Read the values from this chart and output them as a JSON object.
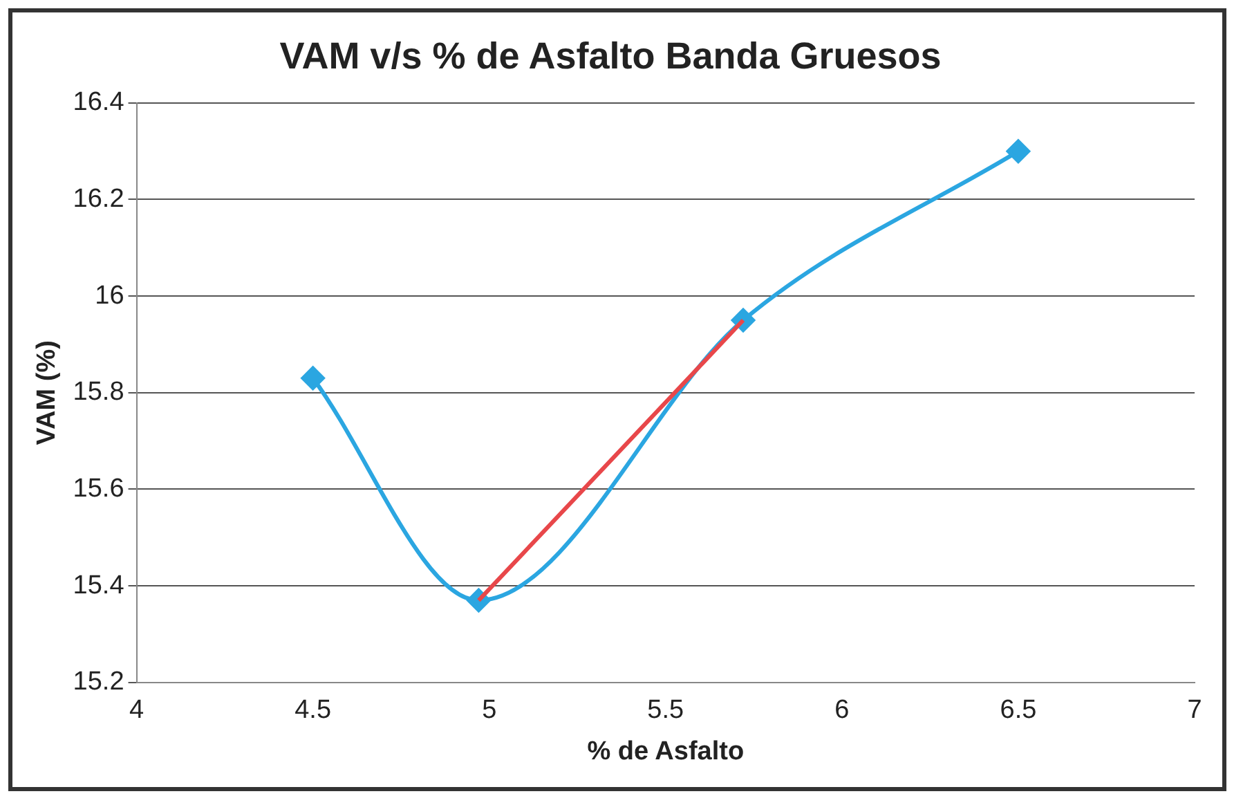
{
  "chart_data": {
    "type": "line",
    "title": "VAM v/s % de Asfalto Banda Gruesos",
    "xlabel": "% de Asfalto",
    "ylabel": "VAM (%)",
    "xlim": [
      4,
      7
    ],
    "xticks": [
      4,
      4.5,
      5,
      5.5,
      6,
      6.5,
      7
    ],
    "ylim": [
      15.2,
      16.4
    ],
    "yticks": [
      15.2,
      15.4,
      15.6,
      15.8,
      16,
      16.2,
      16.4
    ],
    "grid": "y",
    "legend": false,
    "marker": "diamond",
    "series": [
      {
        "color": "#2ba6e1",
        "x": [
          4.5,
          4.97,
          5.72,
          6.5
        ],
        "values": [
          15.83,
          15.37,
          15.95,
          16.3
        ]
      },
      {
        "color": "#e8474a",
        "x": [
          4.97,
          5.72
        ],
        "values": [
          15.37,
          15.95
        ],
        "marker": "none"
      }
    ]
  }
}
